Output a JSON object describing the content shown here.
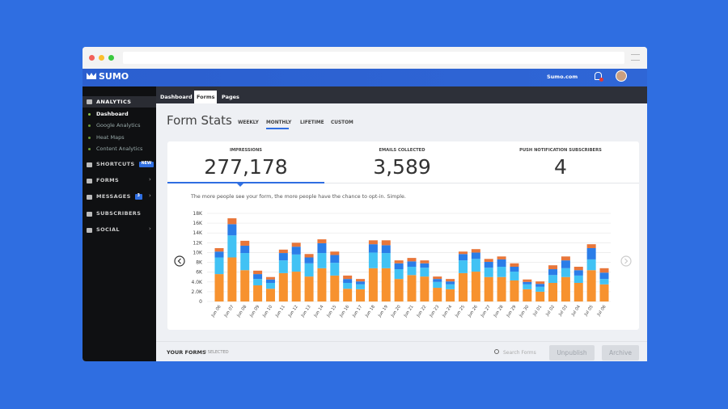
{
  "header": {
    "logo": "SUMO",
    "site": "Sumo.com"
  },
  "sidebar": {
    "section": "ANALYTICS",
    "items": [
      "Dashboard",
      "Google Analytics",
      "Heat Maps",
      "Content Analytics"
    ],
    "menu": [
      {
        "label": "SHORTCUTS",
        "badge": "NEW"
      },
      {
        "label": "FORMS"
      },
      {
        "label": "MESSAGES",
        "badge": "3"
      },
      {
        "label": "SUBSCRIBERS"
      },
      {
        "label": "SOCIAL"
      }
    ]
  },
  "tabs": [
    "Dashboard",
    "Forms",
    "Pages"
  ],
  "page": {
    "title": "Form Stats",
    "periods": [
      "WEEKLY",
      "MONTHLY",
      "LIFETIME",
      "CUSTOM"
    ]
  },
  "stats": [
    {
      "label": "IMPRESSIONS",
      "value": "277,178"
    },
    {
      "label": "EMAILS COLLECTED",
      "value": "3,589"
    },
    {
      "label": "PUSH NOTIFICATION SUBSCRIBERS",
      "value": "4"
    }
  ],
  "description": "The more people see your form, the more people have the chance to opt-in. Simple.",
  "chart_data": {
    "type": "stacked_bar",
    "categories": [
      "Jun 06",
      "Jun 07",
      "Jun 08",
      "Jun 09",
      "Jun 10",
      "Jun 11",
      "Jun 12",
      "Jun 13",
      "Jun 14",
      "Jun 15",
      "Jun 16",
      "Jun 17",
      "Jun 18",
      "Jun 19",
      "Jun 20",
      "Jun 21",
      "Jun 22",
      "Jun 23",
      "Jun 24",
      "Jun 25",
      "Jun 26",
      "Jun 27",
      "Jun 28",
      "Jun 29",
      "Jun 30",
      "Jul 01",
      "Jul 02",
      "Jul 03",
      "Jul 04",
      "Jul 05",
      "Jul 06"
    ],
    "series": [
      {
        "color": "#f7922f",
        "values": [
          5600,
          9000,
          6400,
          3300,
          2600,
          5800,
          6100,
          5100,
          6800,
          5300,
          2600,
          2500,
          6800,
          6800,
          4600,
          5400,
          5100,
          2800,
          2500,
          5800,
          6100,
          5000,
          5000,
          4300,
          2500,
          2000,
          3800,
          5000,
          3800,
          6400,
          3500
        ]
      },
      {
        "color": "#41c2f4",
        "values": [
          3400,
          4500,
          3500,
          1300,
          1200,
          2600,
          3500,
          2700,
          3100,
          2600,
          1200,
          1000,
          3200,
          3100,
          2000,
          1700,
          1800,
          1200,
          1000,
          2600,
          2600,
          1900,
          2100,
          1800,
          1000,
          1000,
          1600,
          1800,
          1500,
          2200,
          1100
        ]
      },
      {
        "color": "#2a7de8",
        "values": [
          1200,
          2300,
          1500,
          1000,
          700,
          1500,
          1600,
          1200,
          2000,
          1600,
          800,
          600,
          1700,
          1600,
          1200,
          1100,
          900,
          600,
          600,
          1300,
          1300,
          1200,
          1500,
          1000,
          500,
          600,
          1200,
          1600,
          1100,
          2300,
          1300
        ]
      },
      {
        "color": "#e8763a",
        "values": [
          700,
          1200,
          1000,
          700,
          500,
          700,
          800,
          700,
          800,
          700,
          700,
          500,
          800,
          1000,
          600,
          700,
          600,
          500,
          500,
          500,
          700,
          600,
          600,
          700,
          500,
          500,
          800,
          800,
          700,
          800,
          900
        ]
      }
    ],
    "ylim": [
      0,
      18000
    ],
    "yticks": [
      0,
      {
        "value": 2000,
        "label": "2.0K"
      },
      {
        "value": 4000,
        "label": "4.0K"
      },
      {
        "value": 6000,
        "label": "6K"
      },
      {
        "value": 8000,
        "label": "8K"
      },
      {
        "value": 10000,
        "label": "10K"
      },
      {
        "value": 12000,
        "label": "12K"
      },
      {
        "value": 14000,
        "label": "14K"
      },
      {
        "value": 16000,
        "label": "16K"
      },
      {
        "value": 18000,
        "label": "18K"
      }
    ],
    "grid": true
  },
  "footer": {
    "title": "YOUR FORMS",
    "selected": "0 SELECTED",
    "search": "Search Forms",
    "buttons": [
      "Unpublish",
      "Archive"
    ]
  }
}
